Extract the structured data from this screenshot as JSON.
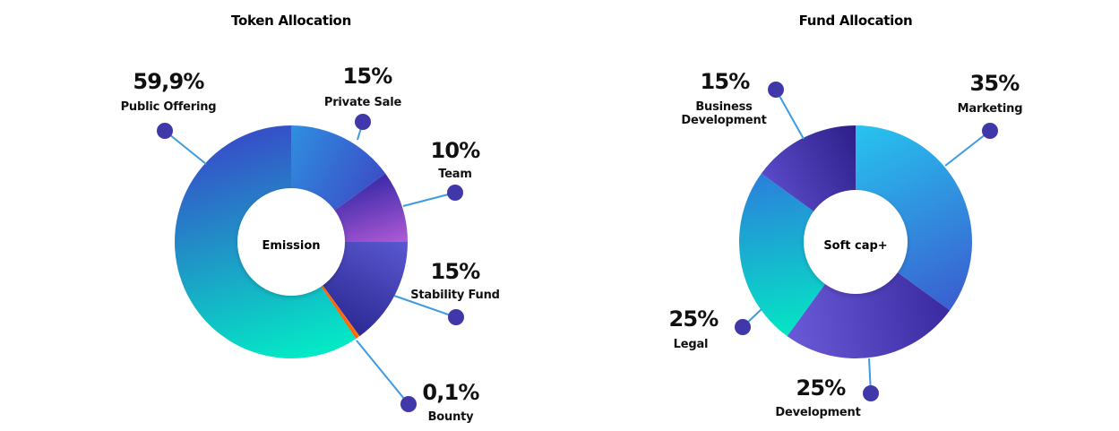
{
  "chart_data": [
    {
      "type": "pie",
      "title": "Token Allocation",
      "center_label": "Emission",
      "slices": [
        {
          "name": "Private Sale",
          "value": 15,
          "label": "15%",
          "color_start": "#2f8fe0",
          "color_end": "#3b4fc7"
        },
        {
          "name": "Team",
          "value": 10,
          "label": "10%",
          "color_start": "#3b2aa8",
          "color_end": "#b15ad6"
        },
        {
          "name": "Stability Fund",
          "value": 15,
          "label": "15%",
          "color_start": "#5a58d0",
          "color_end": "#2c2a94"
        },
        {
          "name": "Bounty",
          "value": 0.1,
          "label": "0,1%",
          "color_start": "#ff7a1a",
          "color_end": "#ff5a00"
        },
        {
          "name": "Public Offering",
          "value": 59.9,
          "label": "59,9%",
          "color_start": "#04e8c6",
          "color_end": "#3552c8"
        }
      ]
    },
    {
      "type": "pie",
      "title": "Fund Allocation",
      "center_label": "Soft cap+",
      "slices": [
        {
          "name": "Marketing",
          "value": 35,
          "label": "35%",
          "color_start": "#27c4ef",
          "color_end": "#3a5fd0"
        },
        {
          "name": "Development",
          "value": 25,
          "label": "25%",
          "color_start": "#3a2aa0",
          "color_end": "#6a5ad8"
        },
        {
          "name": "Legal",
          "value": 25,
          "label": "25%",
          "color_start": "#04e6c4",
          "color_end": "#2b7fdc"
        },
        {
          "name": "Business Development",
          "value": 15,
          "label": "15%",
          "color_start": "#5a4ac8",
          "color_end": "#2c1f88"
        }
      ]
    }
  ],
  "colors": {
    "marker": "#4038a8",
    "leader_line": "#3d9be3",
    "text": "#111111"
  }
}
